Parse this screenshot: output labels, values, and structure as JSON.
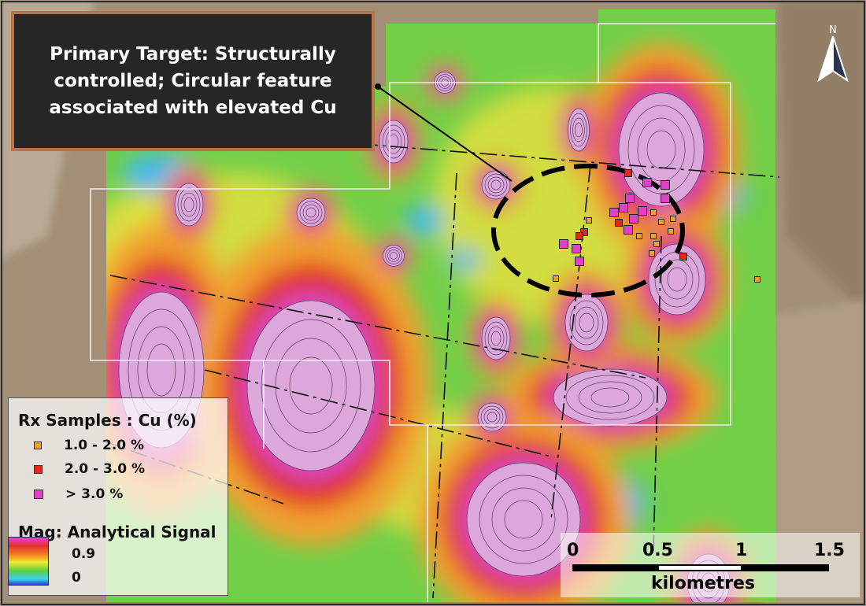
{
  "callout": {
    "text": "Primary Target: Structurally controlled; Circular feature associated with elevated Cu"
  },
  "legend": {
    "samples_title": "Rx Samples : Cu (%)",
    "samples": [
      {
        "label": "1.0 - 2.0 %",
        "color": "#f0a030"
      },
      {
        "label": "2.0 - 3.0 %",
        "color": "#e02818"
      },
      {
        "label": "> 3.0 %",
        "color": "#e040c8"
      }
    ],
    "mag_title": "Mag: Analytical Signal",
    "mag_max": "0.9",
    "mag_min": "0"
  },
  "scale_bar": {
    "ticks": [
      "0",
      "0.5",
      "1",
      "1.5"
    ],
    "unit": "kilometres"
  },
  "north_arrow": {
    "label": "N"
  }
}
